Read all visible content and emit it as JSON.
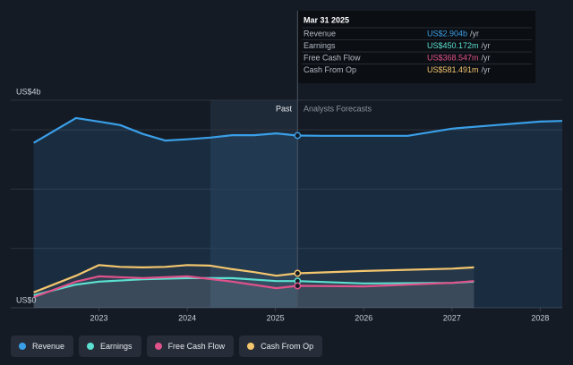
{
  "chart_data": {
    "type": "line",
    "y_top_label": "US$4b",
    "y_bottom_label": "US$0",
    "past_label": "Past",
    "forecast_label": "Analysts Forecasts",
    "xlim": [
      2022,
      2028.25
    ],
    "xticks": [
      2023,
      2024,
      2025,
      2026,
      2027,
      2028
    ],
    "ylim": [
      0,
      3.5
    ],
    "ygrid": [
      1,
      2,
      3
    ],
    "cursor_x": 2025.25,
    "series": [
      {
        "name": "Revenue",
        "color": "#3a9fe8",
        "x": [
          2022.26,
          2022.74,
          2023.0,
          2023.24,
          2023.5,
          2023.75,
          2024.0,
          2024.26,
          2024.51,
          2024.76,
          2025.01,
          2025.25,
          2025.53,
          2026.0,
          2026.5,
          2027.0,
          2027.5,
          2028.0,
          2028.25
        ],
        "values": [
          2.78,
          3.2,
          3.14,
          3.08,
          2.93,
          2.82,
          2.84,
          2.87,
          2.91,
          2.91,
          2.94,
          2.904,
          2.9,
          2.9,
          2.9,
          3.02,
          3.08,
          3.14,
          3.15
        ]
      },
      {
        "name": "Earnings",
        "color": "#5ce0d0",
        "x": [
          2022.26,
          2022.74,
          2023.0,
          2023.5,
          2024.0,
          2024.51,
          2025.01,
          2025.25,
          2026.0,
          2027.0,
          2027.25
        ],
        "values": [
          0.21,
          0.39,
          0.44,
          0.48,
          0.5,
          0.5,
          0.45,
          0.45,
          0.41,
          0.42,
          0.44
        ]
      },
      {
        "name": "Free Cash Flow",
        "color": "#e0528a",
        "x": [
          2022.26,
          2022.74,
          2023.0,
          2023.5,
          2024.0,
          2024.51,
          2025.01,
          2025.25,
          2026.0,
          2027.0,
          2027.25
        ],
        "values": [
          0.18,
          0.44,
          0.53,
          0.5,
          0.53,
          0.44,
          0.33,
          0.369,
          0.36,
          0.42,
          0.45
        ]
      },
      {
        "name": "Cash From Op",
        "color": "#f4c66e",
        "x": [
          2022.26,
          2022.74,
          2023.0,
          2023.24,
          2023.5,
          2023.75,
          2024.0,
          2024.26,
          2024.51,
          2024.76,
          2025.01,
          2025.25,
          2026.0,
          2027.0,
          2027.25
        ],
        "values": [
          0.26,
          0.54,
          0.72,
          0.69,
          0.68,
          0.69,
          0.72,
          0.71,
          0.65,
          0.6,
          0.54,
          0.581,
          0.62,
          0.66,
          0.68
        ]
      }
    ],
    "tooltip": {
      "date": "Mar 31 2025",
      "rows": [
        {
          "label": "Revenue",
          "value": "US$2.904b",
          "unit": "/yr"
        },
        {
          "label": "Earnings",
          "value": "US$450.172m",
          "unit": "/yr"
        },
        {
          "label": "Free Cash Flow",
          "value": "US$368.547m",
          "unit": "/yr"
        },
        {
          "label": "Cash From Op",
          "value": "US$581.491m",
          "unit": "/yr"
        }
      ]
    }
  }
}
